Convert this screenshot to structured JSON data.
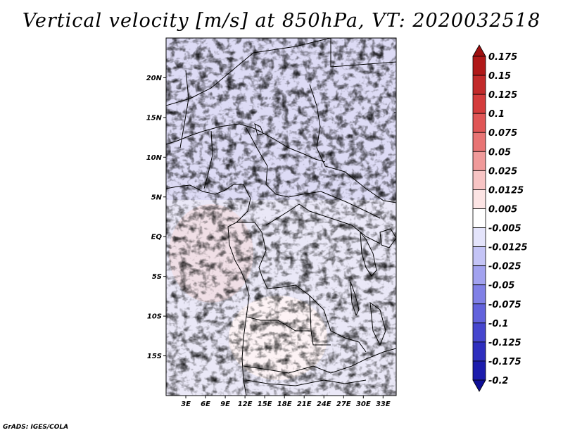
{
  "title": "Vertical velocity [m/s] at 850hPa, VT: 2020032518",
  "credit": "GrADS: IGES/COLA",
  "map": {
    "lon_range": [
      0,
      35
    ],
    "lat_range": [
      -20,
      25
    ],
    "lat_ticks": [
      "20N",
      "15N",
      "10N",
      "5N",
      "EQ",
      "5S",
      "10S",
      "15S"
    ],
    "lat_values": [
      20,
      15,
      10,
      5,
      0,
      -5,
      -10,
      -15
    ],
    "lon_ticks": [
      "3E",
      "6E",
      "9E",
      "12E",
      "15E",
      "18E",
      "21E",
      "24E",
      "27E",
      "30E",
      "33E"
    ],
    "lon_values": [
      3,
      6,
      9,
      12,
      15,
      18,
      21,
      24,
      27,
      30,
      33
    ]
  },
  "colorbar": {
    "labels": [
      "0.175",
      "0.15",
      "0.125",
      "0.1",
      "0.075",
      "0.05",
      "0.025",
      "0.0125",
      "0.005",
      "-0.005",
      "-0.0125",
      "-0.025",
      "-0.05",
      "-0.075",
      "-0.1",
      "-0.125",
      "-0.175",
      "-0.2"
    ],
    "colors": [
      "#9e1010",
      "#b01818",
      "#c22a2a",
      "#d43c3c",
      "#e05656",
      "#e87474",
      "#f09a9a",
      "#f7c4c4",
      "#fce4e4",
      "#ffffff",
      "#e4e4fb",
      "#c4c4f6",
      "#a2a2ef",
      "#8080e6",
      "#6262dc",
      "#4646ce",
      "#2e2ebe",
      "#1c1cac",
      "#0e0e96"
    ]
  }
}
